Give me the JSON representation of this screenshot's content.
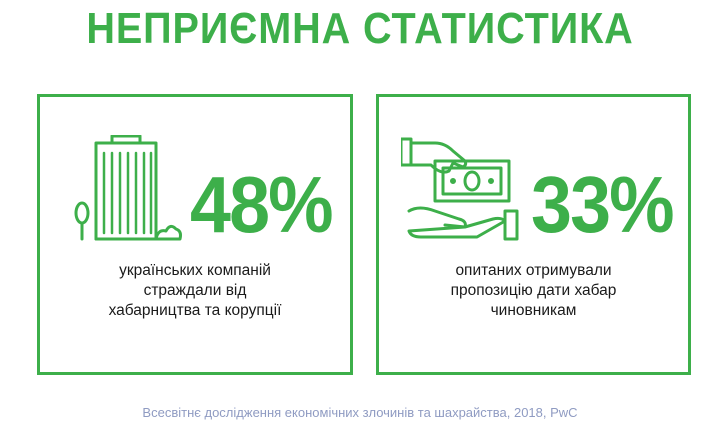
{
  "title": "НЕПРИЄМНА СТАТИСТИКА",
  "colors": {
    "accent": "#3daf4a",
    "text": "#1a1a1a",
    "footer": "#8f9bc2"
  },
  "cards": [
    {
      "icon": "office-building-icon",
      "stat": "48%",
      "lines": [
        "українських компаній",
        "страждали від",
        "хабарництва та корупції"
      ]
    },
    {
      "icon": "bribe-money-hands-icon",
      "stat": "33%",
      "lines": [
        "опитаних отримували",
        "пропозицію дати хабар",
        "чиновникам"
      ]
    }
  ],
  "footer": "Всесвітнє дослідження економічних злочинів та шахрайства, 2018, PwC"
}
